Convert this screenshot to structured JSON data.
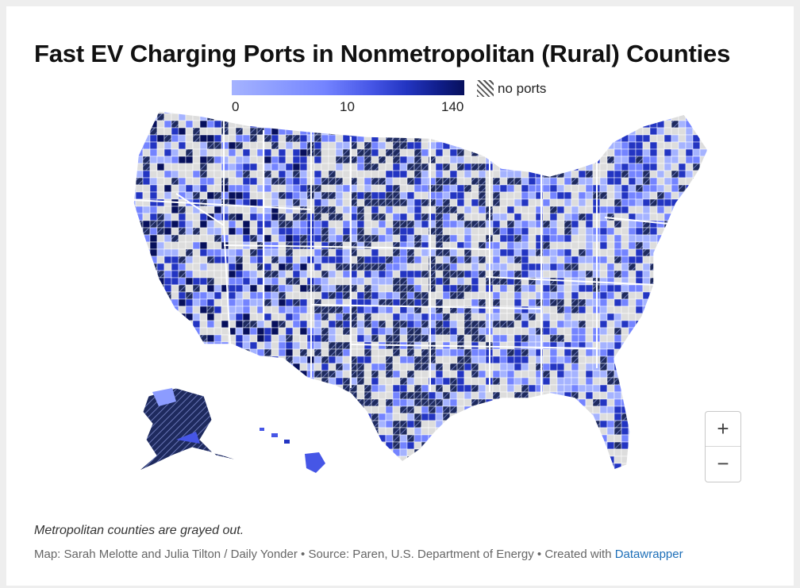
{
  "title": "Fast EV Charging Ports in Nonmetropolitan (Rural) Counties",
  "legend": {
    "scale_ticks": [
      "0",
      "10",
      "140"
    ],
    "no_data_label": "no ports",
    "colors": [
      "#a5b3ff",
      "#7484ff",
      "#2335c2",
      "#07105c"
    ]
  },
  "map": {
    "region": "United States counties",
    "metro_color": "#dddddd",
    "no_ports_pattern": "hatched"
  },
  "controls": {
    "zoom_in": "+",
    "zoom_out": "−"
  },
  "notes": "Metropolitan counties are grayed out.",
  "credit": {
    "text": "Map: Sarah Melotte and Julia Tilton / Daily Yonder • Source: Paren, U.S. Department of Energy • Created with ",
    "link": "Datawrapper"
  }
}
